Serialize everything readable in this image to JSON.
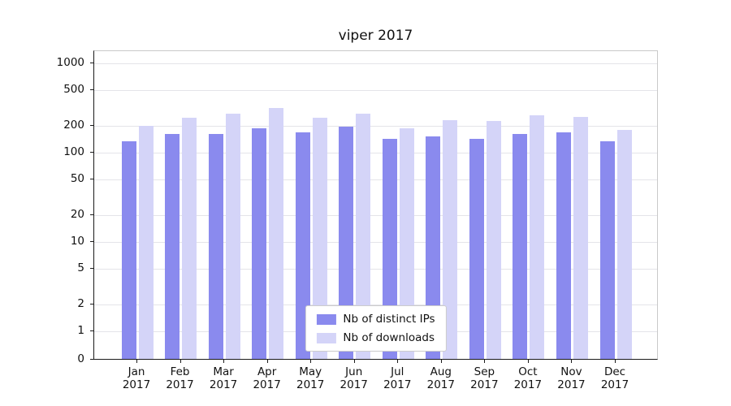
{
  "chart_data": {
    "type": "bar",
    "title": "viper 2017",
    "categories": [
      "Jan 2017",
      "Feb 2017",
      "Mar 2017",
      "Apr 2017",
      "May 2017",
      "Jun 2017",
      "Jul 2017",
      "Aug 2017",
      "Sep 2017",
      "Oct 2017",
      "Nov 2017",
      "Dec 2017"
    ],
    "series": [
      {
        "name": "Nb of distinct IPs",
        "color": "#8a8aee",
        "values": [
          130,
          160,
          160,
          185,
          165,
          190,
          140,
          150,
          140,
          160,
          165,
          130
        ]
      },
      {
        "name": "Nb of downloads",
        "color": "#d4d4f8",
        "values": [
          195,
          240,
          270,
          310,
          240,
          265,
          185,
          225,
          220,
          255,
          245,
          175
        ]
      }
    ],
    "yticks": [
      0,
      1,
      2,
      5,
      10,
      20,
      50,
      100,
      200,
      500,
      1000
    ],
    "yscale": "symlog",
    "ylim": [
      0,
      1000
    ],
    "grid": true,
    "legend_position": "lower-center-inside"
  }
}
